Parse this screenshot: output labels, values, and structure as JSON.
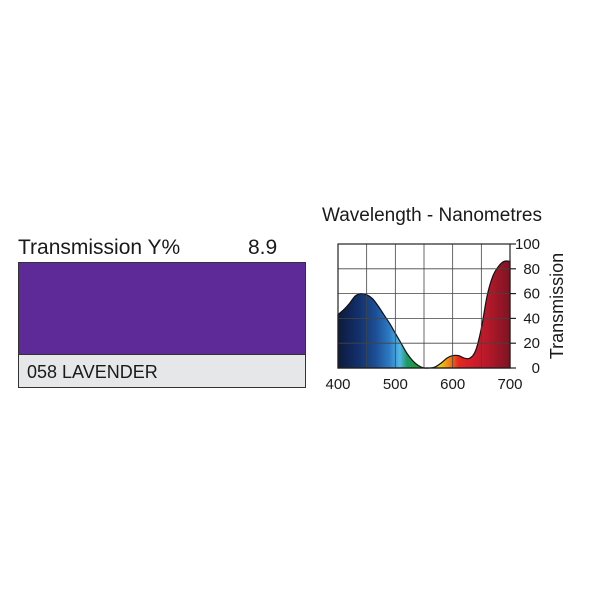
{
  "transmission": {
    "label": "Transmission Y%",
    "value": "8.9"
  },
  "filter": {
    "name": "058 LAVENDER",
    "color": "#5e2a97"
  },
  "chart_data": {
    "type": "area",
    "title": "Wavelength - Nanometres",
    "xlabel": "",
    "ylabel": "Transmission",
    "xlim": [
      400,
      700
    ],
    "ylim": [
      0,
      100
    ],
    "x_ticks": [
      "400",
      "500",
      "600",
      "700"
    ],
    "y_ticks": [
      "0",
      "20",
      "40",
      "60",
      "80",
      "100"
    ],
    "grid": true,
    "x": [
      400,
      410,
      420,
      430,
      440,
      450,
      460,
      470,
      480,
      490,
      500,
      510,
      520,
      530,
      540,
      550,
      560,
      570,
      580,
      590,
      600,
      610,
      620,
      630,
      640,
      650,
      660,
      670,
      680,
      690,
      700
    ],
    "y": [
      43,
      47,
      52,
      58,
      60,
      59,
      56,
      50,
      43,
      36,
      28,
      20,
      12,
      6,
      2,
      0,
      0,
      1,
      4,
      8,
      10,
      10,
      8,
      8,
      14,
      32,
      58,
      74,
      82,
      86,
      86
    ]
  }
}
